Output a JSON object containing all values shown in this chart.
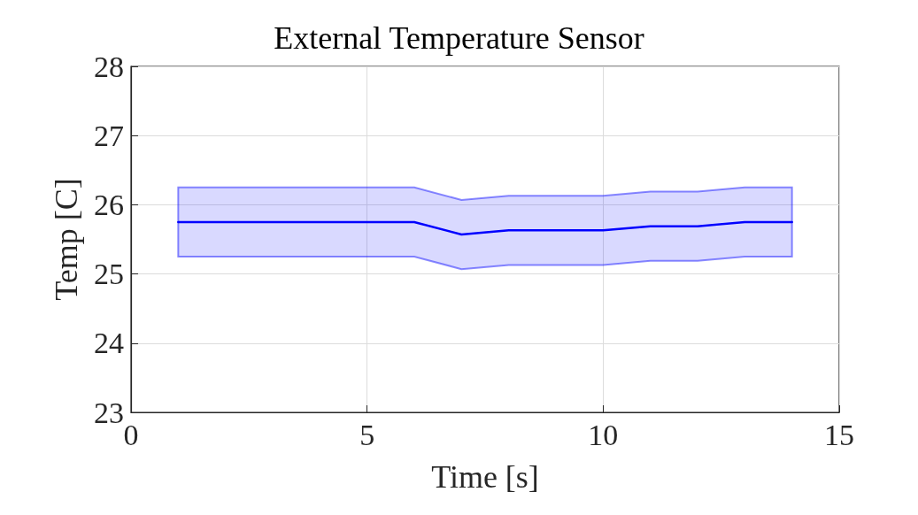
{
  "chart_data": {
    "type": "line",
    "title": "External Temperature Sensor",
    "xlabel": "Time [s]",
    "ylabel": "Temp [C]",
    "x": [
      1,
      2,
      3,
      4,
      5,
      6,
      7,
      8,
      9,
      10,
      11,
      12,
      13,
      14
    ],
    "series": [
      {
        "color": "#0000ff",
        "values": [
          25.75,
          25.75,
          25.75,
          25.75,
          25.75,
          25.75,
          25.57,
          25.63,
          25.63,
          25.63,
          25.69,
          25.69,
          25.75,
          25.75
        ],
        "lower": [
          25.25,
          25.25,
          25.25,
          25.25,
          25.25,
          25.25,
          25.07,
          25.13,
          25.13,
          25.13,
          25.19,
          25.19,
          25.25,
          25.25
        ],
        "upper": [
          26.25,
          26.25,
          26.25,
          26.25,
          26.25,
          26.25,
          26.07,
          26.13,
          26.13,
          26.13,
          26.19,
          26.19,
          26.25,
          26.25
        ]
      }
    ],
    "xlim": [
      0,
      15
    ],
    "xticks": [
      0,
      5,
      10,
      15
    ],
    "ylim": [
      23,
      28
    ],
    "yticks": [
      23,
      24,
      25,
      26,
      27,
      28
    ],
    "grid": true,
    "marker": "none",
    "line_style": "solid"
  }
}
